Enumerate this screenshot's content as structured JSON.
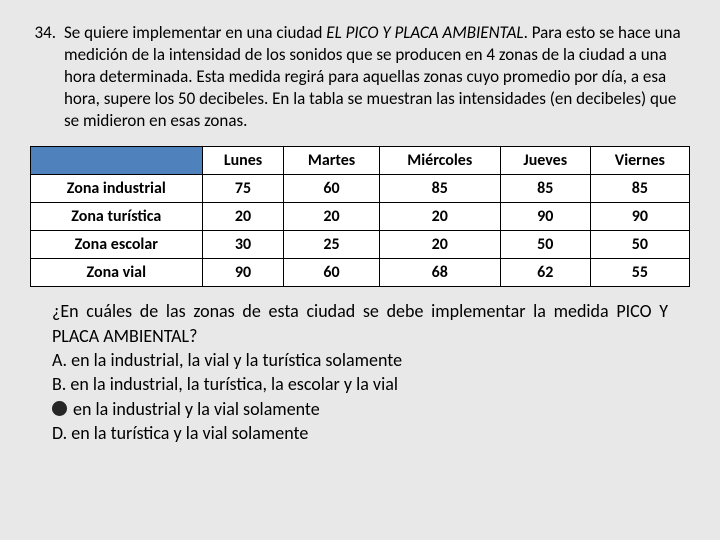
{
  "question": {
    "number": "34.",
    "text_parts": {
      "p1": "Se quiere implementar en una ciudad ",
      "p2_italic": "EL PICO Y PLACA AMBIENTAL",
      "p3": ".  Para esto se hace una medición de la intensidad de los sonidos que se producen en 4 zonas de la ciudad a una hora determinada.  Esta medida regirá para aquellas zonas cuyo promedio por día, a esa hora, supere los 50 decibeles.  En la tabla se muestran las intensidades (en decibeles) que se midieron en esas zonas."
    }
  },
  "table": {
    "header_bg": "#4f81bd",
    "columns": [
      "Lunes",
      "Martes",
      "Miércoles",
      "Jueves",
      "Viernes"
    ],
    "rows": [
      {
        "label": "Zona industrial",
        "values": [
          "75",
          "60",
          "85",
          "85",
          "85"
        ]
      },
      {
        "label": "Zona turística",
        "values": [
          "20",
          "20",
          "20",
          "90",
          "90"
        ]
      },
      {
        "label": "Zona escolar",
        "values": [
          "30",
          "25",
          "20",
          "50",
          "50"
        ]
      },
      {
        "label": "Zona vial",
        "values": [
          "90",
          "60",
          "68",
          "62",
          "55"
        ]
      }
    ]
  },
  "followup": "¿En cuáles de las zonas de esta ciudad se debe implementar la medida PICO Y PLACA AMBIENTAL?",
  "options": {
    "A": "A. en la industrial, la vial y la turística solamente",
    "B": "B. en la industrial, la turística, la escolar y la vial",
    "C_tail": " en la industrial y la vial solamente",
    "D": "D. en la turística y la vial solamente"
  }
}
